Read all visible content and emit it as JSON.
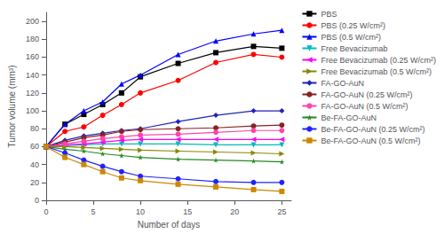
{
  "chart_data": {
    "type": "line",
    "x": [
      0,
      2,
      4,
      6,
      8,
      10,
      14,
      18,
      22,
      25
    ],
    "series": [
      {
        "name": "PBS",
        "color": "#000000",
        "marker": "square",
        "values": [
          60,
          85,
          96,
          107,
          120,
          138,
          153,
          165,
          172,
          170
        ]
      },
      {
        "name": "PBS (0.25 W/cm²)",
        "color": "#ff0000",
        "marker": "circle",
        "values": [
          60,
          77,
          82,
          95,
          107,
          120,
          134,
          154,
          163,
          160
        ]
      },
      {
        "name": "PBS (0.5 W/cm²)",
        "color": "#0000ff",
        "marker": "triangle-up",
        "values": [
          60,
          85,
          100,
          110,
          130,
          140,
          163,
          178,
          186,
          190
        ]
      },
      {
        "name": "Free Bevacizumab",
        "color": "#00bbbb",
        "marker": "triangle-down",
        "values": [
          60,
          61,
          62,
          63,
          63,
          63,
          63,
          62,
          62,
          62
        ]
      },
      {
        "name": "Free Bevacizumab (0.25 W/cm²)",
        "color": "#ff00ff",
        "marker": "triangle-left",
        "values": [
          60,
          62,
          63,
          65,
          67,
          68,
          68,
          68,
          68,
          68
        ]
      },
      {
        "name": "Free Bevacizumab (0.5 W/cm²)",
        "color": "#888800",
        "marker": "triangle-right",
        "values": [
          60,
          60,
          59,
          58,
          57,
          56,
          55,
          54,
          53,
          52
        ]
      },
      {
        "name": "FA-GO-AuN",
        "color": "#2222bb",
        "marker": "diamond",
        "values": [
          60,
          67,
          72,
          75,
          78,
          80,
          88,
          95,
          100,
          100
        ]
      },
      {
        "name": "FA-GO-AuN (0.25 W/cm²)",
        "color": "#882222",
        "marker": "circle",
        "values": [
          60,
          65,
          70,
          73,
          77,
          79,
          80,
          81,
          83,
          84
        ]
      },
      {
        "name": "FA-GO-AuN (0.5 W/cm²)",
        "color": "#ff44aa",
        "marker": "circle",
        "values": [
          60,
          63,
          66,
          69,
          71,
          73,
          74,
          76,
          78,
          78
        ]
      },
      {
        "name": "Be-FA-GO-AuN",
        "color": "#228822",
        "marker": "star",
        "values": [
          60,
          57,
          55,
          52,
          50,
          48,
          46,
          45,
          44,
          43
        ]
      },
      {
        "name": "Be-FA-GO-AuN (0.25 W/cm²)",
        "color": "#2222ff",
        "marker": "circle",
        "values": [
          60,
          53,
          45,
          38,
          32,
          27,
          24,
          21,
          20,
          20
        ]
      },
      {
        "name": "Be-FA-GO-AuN (0.5 W/cm²)",
        "color": "#cc8800",
        "marker": "square",
        "values": [
          60,
          48,
          40,
          32,
          25,
          22,
          18,
          15,
          12,
          10
        ]
      }
    ],
    "xlabel": "Number of days",
    "ylabel": "Tumor volume (mm³)",
    "xlim": [
      0,
      26
    ],
    "ylim": [
      0,
      210
    ],
    "xticks": [
      0,
      5,
      10,
      15,
      20,
      25
    ],
    "yticks": [
      0,
      20,
      40,
      60,
      80,
      100,
      120,
      140,
      160,
      180,
      200
    ],
    "grid": false,
    "legend": "right"
  }
}
